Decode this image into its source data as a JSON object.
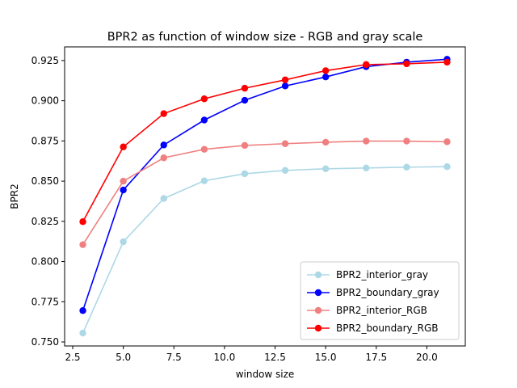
{
  "chart_data": {
    "type": "line",
    "title": "BPR2 as function of window size - RGB and gray scale",
    "xlabel": "window size",
    "ylabel": "BPR2",
    "xlim": [
      2.1,
      21.9
    ],
    "ylim": [
      0.7475,
      0.9335
    ],
    "x_ticks": [
      2.5,
      5.0,
      7.5,
      10.0,
      12.5,
      15.0,
      17.5,
      20.0
    ],
    "y_ticks": [
      0.75,
      0.775,
      0.8,
      0.825,
      0.85,
      0.875,
      0.9,
      0.925
    ],
    "grid": false,
    "legend_position": "lower-right",
    "x": [
      3,
      5,
      7,
      9,
      11,
      13,
      15,
      17,
      19,
      21
    ],
    "series": [
      {
        "name": "BPR2_interior_gray",
        "color": "#add8e6",
        "values": [
          0.7555,
          0.8123,
          0.8392,
          0.8502,
          0.8546,
          0.8567,
          0.8577,
          0.8582,
          0.8587,
          0.859
        ]
      },
      {
        "name": "BPR2_boundary_gray",
        "color": "#0000ff",
        "values": [
          0.7695,
          0.8445,
          0.8725,
          0.888,
          0.9003,
          0.9092,
          0.9148,
          0.9212,
          0.924,
          0.9258
        ]
      },
      {
        "name": "BPR2_interior_RGB",
        "color": "#f08080",
        "values": [
          0.8105,
          0.85,
          0.8645,
          0.8698,
          0.8722,
          0.8733,
          0.8742,
          0.8749,
          0.8749,
          0.8745
        ]
      },
      {
        "name": "BPR2_boundary_RGB",
        "color": "#ff0000",
        "values": [
          0.8248,
          0.8713,
          0.892,
          0.9012,
          0.9078,
          0.913,
          0.9187,
          0.9225,
          0.923,
          0.924
        ]
      }
    ]
  }
}
